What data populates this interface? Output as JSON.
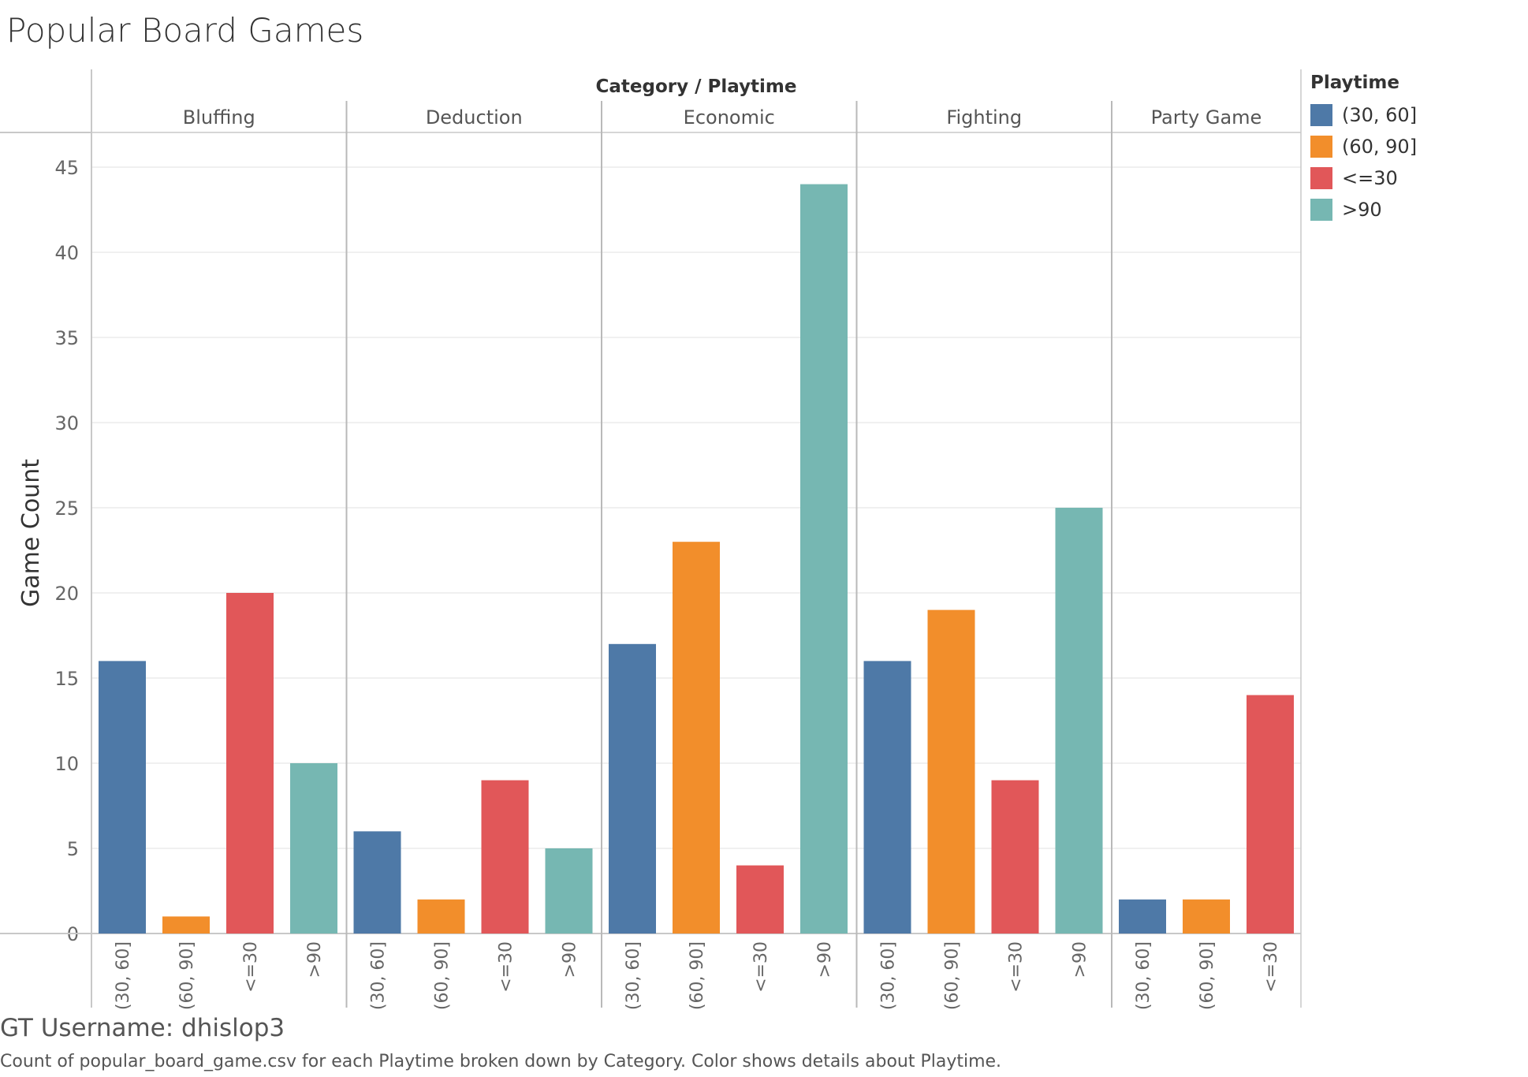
{
  "title": "Popular Board Games",
  "footer": {
    "username": "GT Username: dhislop3",
    "caption": "Count of popular_board_game.csv for each Playtime broken down by Category.  Color shows details about Playtime."
  },
  "legend": {
    "title": "Playtime",
    "items": [
      {
        "label": "(30, 60]",
        "color": "#4e79a7"
      },
      {
        "label": "(60, 90]",
        "color": "#f28e2b"
      },
      {
        "label": "<=30",
        "color": "#e15759"
      },
      {
        "label": ">90",
        "color": "#76b7b2"
      }
    ]
  },
  "chart_data": {
    "type": "bar",
    "title": "Popular Board Games",
    "column_header": "Category / Playtime",
    "ylabel": "Game Count",
    "ylim": [
      0,
      47
    ],
    "yticks": [
      0,
      5,
      10,
      15,
      20,
      25,
      30,
      35,
      40,
      45
    ],
    "grid": true,
    "legend_position": "right",
    "groups": [
      {
        "category": "Bluffing",
        "bars": [
          {
            "playtime": "(30, 60]",
            "value": 16
          },
          {
            "playtime": "(60, 90]",
            "value": 1
          },
          {
            "playtime": "<=30",
            "value": 20
          },
          {
            "playtime": ">90",
            "value": 10
          }
        ]
      },
      {
        "category": "Deduction",
        "bars": [
          {
            "playtime": "(30, 60]",
            "value": 6
          },
          {
            "playtime": "(60, 90]",
            "value": 2
          },
          {
            "playtime": "<=30",
            "value": 9
          },
          {
            "playtime": ">90",
            "value": 5
          }
        ]
      },
      {
        "category": "Economic",
        "bars": [
          {
            "playtime": "(30, 60]",
            "value": 17
          },
          {
            "playtime": "(60, 90]",
            "value": 23
          },
          {
            "playtime": "<=30",
            "value": 4
          },
          {
            "playtime": ">90",
            "value": 44
          }
        ]
      },
      {
        "category": "Fighting",
        "bars": [
          {
            "playtime": "(30, 60]",
            "value": 16
          },
          {
            "playtime": "(60, 90]",
            "value": 19
          },
          {
            "playtime": "<=30",
            "value": 9
          },
          {
            "playtime": ">90",
            "value": 25
          }
        ]
      },
      {
        "category": "Party Game",
        "bars": [
          {
            "playtime": "(30, 60]",
            "value": 2
          },
          {
            "playtime": "(60, 90]",
            "value": 2
          },
          {
            "playtime": "<=30",
            "value": 14
          }
        ]
      }
    ]
  }
}
